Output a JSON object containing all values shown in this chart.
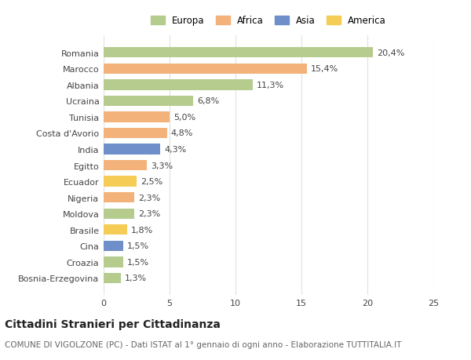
{
  "countries": [
    "Romania",
    "Marocco",
    "Albania",
    "Ucraina",
    "Tunisia",
    "Costa d'Avorio",
    "India",
    "Egitto",
    "Ecuador",
    "Nigeria",
    "Moldova",
    "Brasile",
    "Cina",
    "Croazia",
    "Bosnia-Erzegovina"
  ],
  "values": [
    20.4,
    15.4,
    11.3,
    6.8,
    5.0,
    4.8,
    4.3,
    3.3,
    2.5,
    2.3,
    2.3,
    1.8,
    1.5,
    1.5,
    1.3
  ],
  "labels": [
    "20,4%",
    "15,4%",
    "11,3%",
    "6,8%",
    "5,0%",
    "4,8%",
    "4,3%",
    "3,3%",
    "2,5%",
    "2,3%",
    "2,3%",
    "1,8%",
    "1,5%",
    "1,5%",
    "1,3%"
  ],
  "colors": [
    "#b5cc8e",
    "#f2b27a",
    "#b5cc8e",
    "#b5cc8e",
    "#f2b27a",
    "#f2b27a",
    "#6e8fc9",
    "#f2b27a",
    "#f5cc55",
    "#f2b27a",
    "#b5cc8e",
    "#f5cc55",
    "#6e8fc9",
    "#b5cc8e",
    "#b5cc8e"
  ],
  "legend_labels": [
    "Europa",
    "Africa",
    "Asia",
    "America"
  ],
  "legend_colors": [
    "#b5cc8e",
    "#f2b27a",
    "#6e8fc9",
    "#f5cc55"
  ],
  "xlim": [
    0,
    25
  ],
  "xticks": [
    0,
    5,
    10,
    15,
    20,
    25
  ],
  "title": "Cittadini Stranieri per Cittadinanza",
  "subtitle": "COMUNE DI VIGOLZONE (PC) - Dati ISTAT al 1° gennaio di ogni anno - Elaborazione TUTTITALIA.IT",
  "bg_color": "#ffffff",
  "grid_color": "#e0e0e0",
  "bar_height": 0.65,
  "label_fontsize": 8,
  "ytick_fontsize": 8,
  "xtick_fontsize": 8,
  "title_fontsize": 10,
  "subtitle_fontsize": 7.5
}
